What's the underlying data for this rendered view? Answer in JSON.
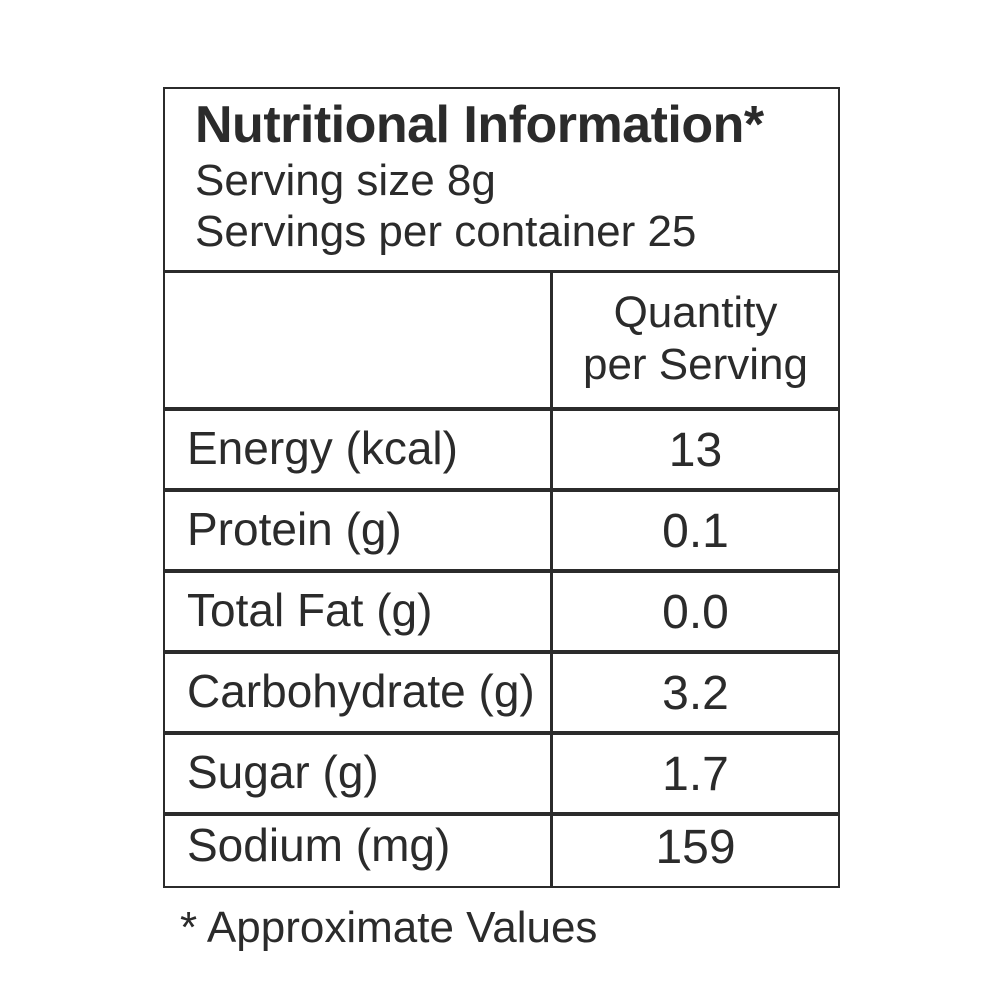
{
  "header": {
    "title": "Nutritional Information*",
    "serving_size": "Serving size 8g",
    "servings_per_container": "Servings per container 25"
  },
  "table": {
    "column_header_line1": "Quantity",
    "column_header_line2": "per Serving",
    "rows": [
      {
        "name": "Energy (kcal)",
        "value": "13"
      },
      {
        "name": "Protein (g)",
        "value": "0.1"
      },
      {
        "name": "Total Fat (g)",
        "value": "0.0"
      },
      {
        "name": "Carbohydrate (g)",
        "value": "3.2"
      },
      {
        "name": "Sugar (g)",
        "value": "1.7"
      },
      {
        "name": "Sodium (mg)",
        "value": "159"
      }
    ]
  },
  "footnote": "*  Approximate Values"
}
